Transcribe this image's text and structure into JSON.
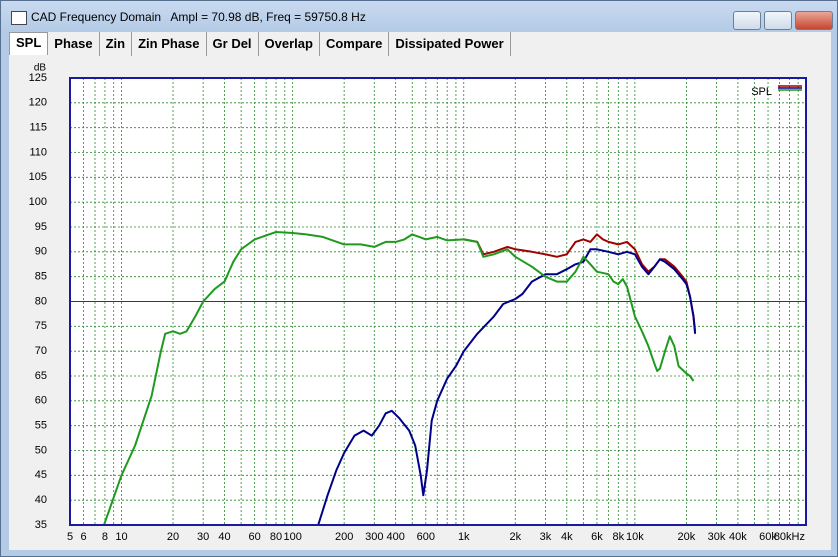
{
  "window": {
    "title": "CAD Frequency Domain   Ampl = 70.98 dB, Freq = 59750.8 Hz",
    "tabs": [
      "SPL",
      "Phase",
      "Zin",
      "Zin Phase",
      "Gr Del",
      "Overlap",
      "Compare",
      "Dissipated Power"
    ]
  },
  "chart_data": {
    "type": "line",
    "y_unit": "dB",
    "legend_label": "SPL",
    "legend": "top-right",
    "log_x": true,
    "grid": true,
    "xlim": [
      5,
      100000
    ],
    "ylim": [
      35,
      125
    ],
    "xticks": [
      5,
      6,
      8,
      10,
      20,
      30,
      40,
      60,
      80,
      100,
      200,
      300,
      400,
      600,
      {
        "value": 1000,
        "label": "1k"
      },
      {
        "value": 2000,
        "label": "2k"
      },
      {
        "value": 3000,
        "label": "3k"
      },
      {
        "value": 4000,
        "label": "4k"
      },
      {
        "value": 6000,
        "label": "6k"
      },
      {
        "value": 8000,
        "label": "8k"
      },
      {
        "value": 10000,
        "label": "10k"
      },
      {
        "value": 20000,
        "label": "20k"
      },
      {
        "value": 30000,
        "label": "30k"
      },
      {
        "value": 40000,
        "label": "40k"
      },
      {
        "value": 60000,
        "label": "60k"
      },
      {
        "value": 80000,
        "label": "80kHz"
      }
    ],
    "xminor": [
      7,
      9,
      50,
      70,
      90,
      500,
      700,
      800,
      900,
      5000,
      7000,
      9000,
      50000,
      70000,
      90000
    ],
    "yticks": [
      35,
      40,
      45,
      50,
      55,
      60,
      65,
      70,
      75,
      80,
      85,
      90,
      95,
      100,
      105,
      110,
      115,
      120,
      125
    ],
    "ref_line": {
      "value": 80,
      "color": "#a01010"
    },
    "series": [
      {
        "color": "#a00000",
        "x": [
          1000,
          1200,
          1300,
          1500,
          1800,
          2000,
          2500,
          3000,
          3500,
          4000,
          4500,
          5000,
          5500,
          6000,
          6500,
          7000,
          8000,
          9000,
          10000,
          11000,
          12000,
          13000,
          14000,
          15000,
          17000,
          19000,
          20000,
          21000,
          22000,
          22500
        ],
        "values": [
          92.5,
          92,
          89.5,
          90,
          91,
          90.5,
          90,
          89.5,
          89,
          89.5,
          92,
          92.5,
          92,
          93.5,
          92.5,
          92,
          91.5,
          92,
          90.5,
          87.5,
          86,
          87,
          88.5,
          88.5,
          87,
          85,
          84,
          81,
          77,
          74
        ]
      },
      {
        "color": "#00008b",
        "x": [
          141,
          160,
          180,
          200,
          230,
          260,
          290,
          320,
          350,
          380,
          420,
          480,
          520,
          560,
          580,
          610,
          650,
          700,
          800,
          900,
          1000,
          1200,
          1500,
          1700,
          2000,
          2200,
          2500,
          3000,
          3500,
          4000,
          4500,
          5000,
          5500,
          6000,
          7000,
          8000,
          9000,
          10000,
          11000,
          12000,
          13000,
          14000,
          15000,
          17000,
          19000,
          20000,
          21000,
          22000,
          22500
        ],
        "values": [
          35,
          41,
          46,
          49.5,
          53,
          54,
          53,
          55,
          57.5,
          58,
          56.5,
          54,
          51,
          45,
          41,
          46,
          56,
          60,
          64.5,
          67,
          70,
          73.5,
          77,
          79.5,
          80.5,
          81.5,
          84,
          85.5,
          85.5,
          86.5,
          87.5,
          88,
          90.5,
          90.5,
          90,
          89.5,
          90,
          89.5,
          87,
          85.5,
          87,
          88.5,
          88,
          86.5,
          84.5,
          83.5,
          81,
          77,
          73.5
        ]
      },
      {
        "color": "#1f9a1f",
        "x": [
          7.9,
          10,
          12,
          15,
          17,
          18,
          20,
          22,
          24,
          27,
          30,
          35,
          40,
          45,
          50,
          60,
          70,
          80,
          100,
          120,
          150,
          200,
          250,
          300,
          350,
          400,
          450,
          500,
          550,
          600,
          700,
          800,
          1000,
          1200,
          1300,
          1500,
          1800,
          2000,
          2500,
          3000,
          3500,
          4000,
          4500,
          5000,
          5500,
          6000,
          7000,
          7500,
          8000,
          8500,
          9000,
          10000,
          11000,
          12000,
          13000,
          13500,
          14000,
          15000,
          16000,
          17000,
          18000,
          20000,
          21000,
          22000
        ],
        "values": [
          35,
          45,
          51,
          61,
          70,
          73.5,
          74,
          73.5,
          74,
          77,
          80,
          82.5,
          84,
          88,
          90.5,
          92.5,
          93.3,
          94,
          93.8,
          93.5,
          93,
          91.5,
          91.5,
          91,
          92,
          92,
          92.5,
          93.5,
          93,
          92.5,
          93,
          92.3,
          92.5,
          92,
          89,
          89.5,
          90.5,
          89,
          87,
          85,
          84,
          84,
          86,
          89,
          87.5,
          86,
          85.5,
          84,
          83.5,
          84.5,
          83,
          77,
          74,
          71,
          67.5,
          66,
          66.5,
          70,
          73,
          71,
          67,
          65.5,
          65,
          64
        ]
      }
    ]
  }
}
